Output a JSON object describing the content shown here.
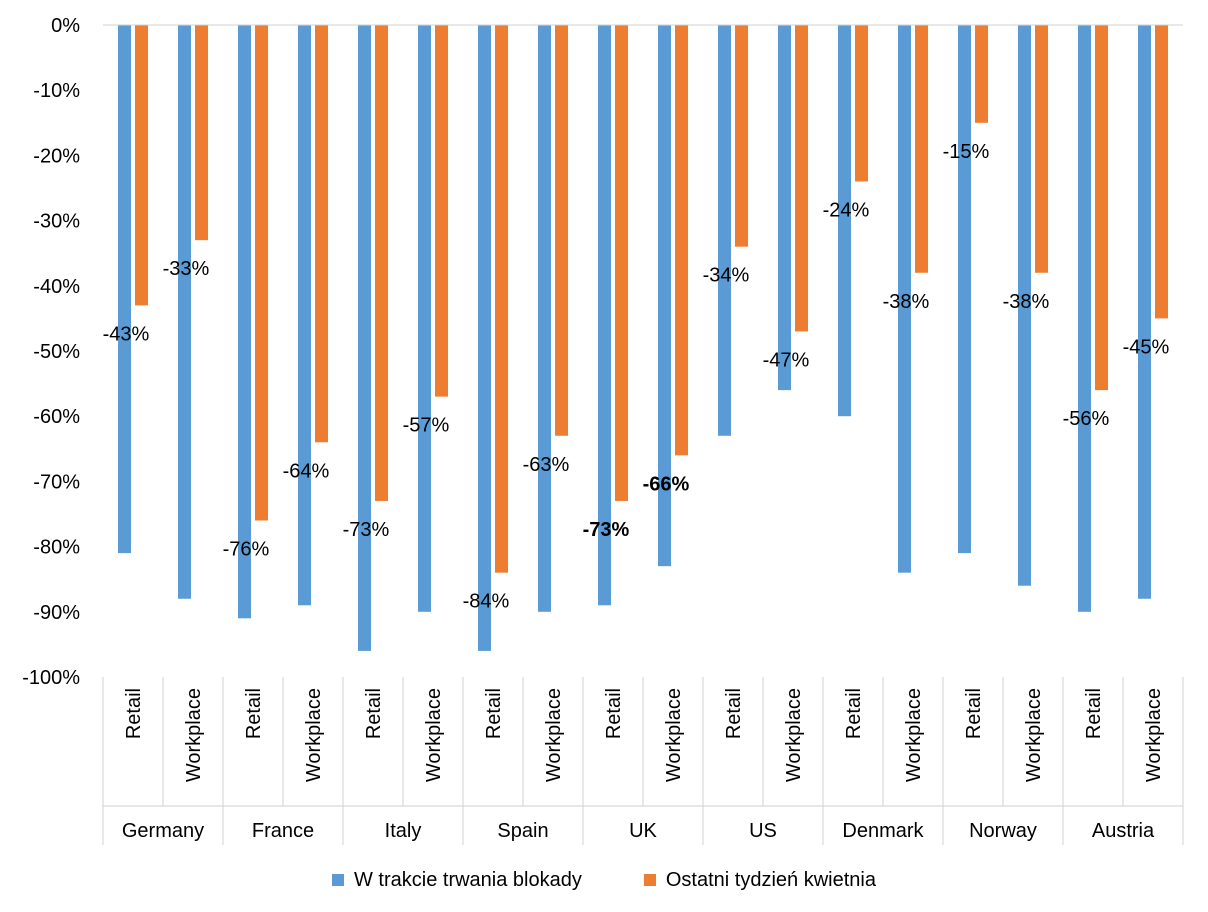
{
  "chart_data": {
    "type": "bar",
    "ylim": [
      -100,
      0
    ],
    "yticks": [
      0,
      -10,
      -20,
      -30,
      -40,
      -50,
      -60,
      -70,
      -80,
      -90,
      -100
    ],
    "ytick_labels": [
      "0%",
      "-10%",
      "-20%",
      "-30%",
      "-40%",
      "-50%",
      "-60%",
      "-70%",
      "-80%",
      "-90%",
      "-100%"
    ],
    "groups": [
      "Germany",
      "France",
      "Italy",
      "Spain",
      "UK",
      "US",
      "Denmark",
      "Norway",
      "Austria"
    ],
    "subcategories": [
      "Retail",
      "Workplace"
    ],
    "series": [
      {
        "name": "W trakcie trwania blokady",
        "color": "#5B9BD5",
        "values": [
          -81,
          -88,
          -91,
          -89,
          -96,
          -90,
          -96,
          -90,
          -89,
          -83,
          -63,
          -56,
          -60,
          -84,
          -81,
          -86,
          -90,
          -88
        ]
      },
      {
        "name": "Ostatni tydzień kwietnia",
        "color": "#ED7D31",
        "values": [
          -43,
          -33,
          -76,
          -64,
          -73,
          -57,
          -84,
          -63,
          -73,
          -66,
          -34,
          -47,
          -24,
          -38,
          -15,
          -38,
          -56,
          -45
        ]
      }
    ],
    "data_labels": [
      "-43%",
      "-33%",
      "-76%",
      "-64%",
      "-73%",
      "-57%",
      "-84%",
      "-63%",
      "-73%",
      "-66%",
      "-34%",
      "-47%",
      "-24%",
      "-38%",
      "-15%",
      "-38%",
      "-56%",
      "-45%"
    ],
    "bold_labels": [
      8,
      9
    ]
  },
  "legend": {
    "items": [
      {
        "label": "W trakcie trwania blokady",
        "color": "#5B9BD5"
      },
      {
        "label": "Ostatni tydzień kwietnia",
        "color": "#ED7D31"
      }
    ]
  }
}
